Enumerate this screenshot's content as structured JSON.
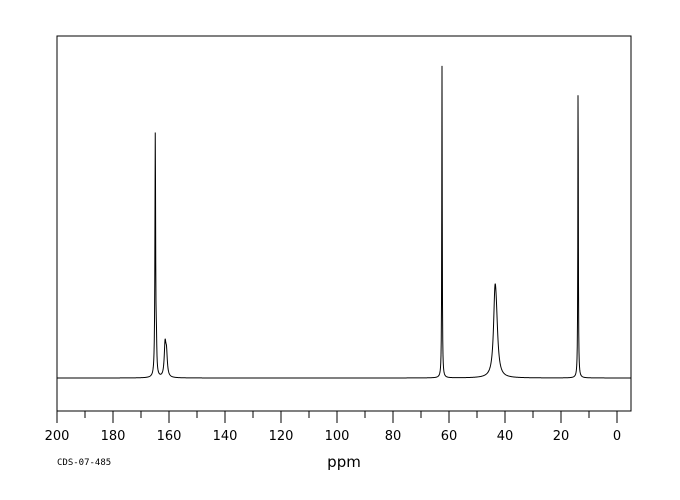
{
  "chart_data": {
    "type": "line",
    "title": "",
    "xlabel": "ppm",
    "ylabel": "",
    "xlim": [
      200,
      -5
    ],
    "x_reversed": true,
    "grid": false,
    "x_ticks_major": [
      200,
      180,
      160,
      140,
      120,
      100,
      80,
      60,
      40,
      20,
      0
    ],
    "x_tick_labels": [
      "200",
      "180",
      "160",
      "140",
      "120",
      "100",
      "80",
      "60",
      "40",
      "20",
      "0"
    ],
    "x_ticks_minor": [
      190,
      170,
      150,
      130,
      110,
      90,
      70,
      50,
      30,
      10
    ],
    "ylim": [
      0,
      1.0
    ],
    "peaks": [
      {
        "ppm": 164.9,
        "height": 0.78,
        "width": 0.15
      },
      {
        "ppm": 164.5,
        "height": 0.08,
        "width": 0.15
      },
      {
        "ppm": 161.4,
        "height": 0.1,
        "width": 0.35
      },
      {
        "ppm": 160.9,
        "height": 0.07,
        "width": 0.35
      },
      {
        "ppm": 62.5,
        "height": 1.0,
        "width": 0.1
      },
      {
        "ppm": 43.6,
        "height": 0.21,
        "width": 0.6
      },
      {
        "ppm": 43.1,
        "height": 0.13,
        "width": 0.7
      },
      {
        "ppm": 13.9,
        "height": 0.98,
        "width": 0.1
      },
      {
        "ppm": 13.9,
        "height": 0.0,
        "width": 0.1
      }
    ],
    "annotation": "CDS-07-485"
  }
}
